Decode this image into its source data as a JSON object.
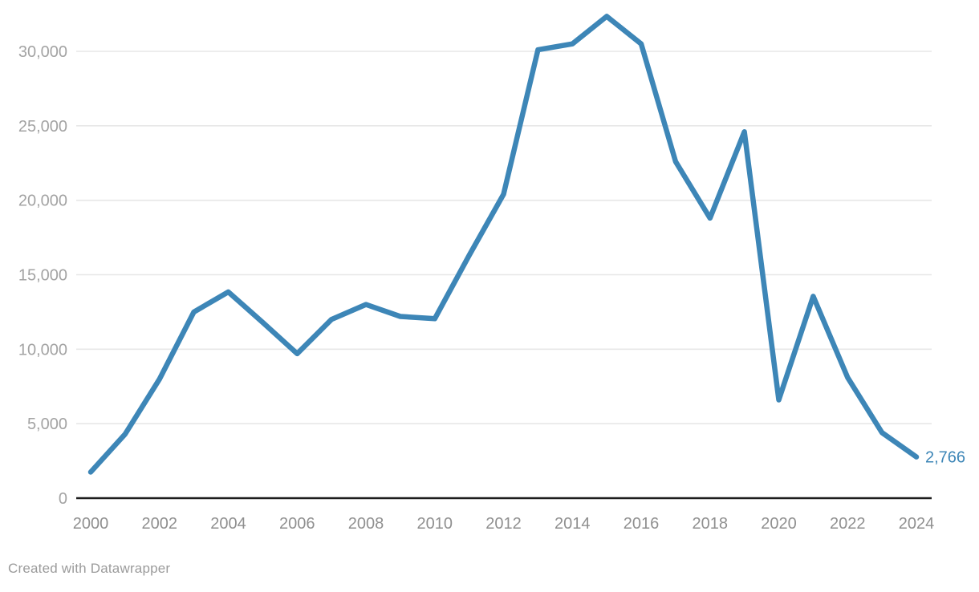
{
  "footer": {
    "attribution": "Created with Datawrapper"
  },
  "colors": {
    "line": "#3d86b7",
    "grid": "#e7e7e7",
    "axis": "#1d1d1d",
    "y_tick_text": "#a3a3a3",
    "x_tick_text": "#8f8f8f",
    "footer_text": "#9b9b9b",
    "value_label": "#3d86b7"
  },
  "chart_data": {
    "type": "line",
    "x": [
      2000,
      2001,
      2002,
      2003,
      2004,
      2005,
      2006,
      2007,
      2008,
      2009,
      2010,
      2011,
      2012,
      2013,
      2014,
      2015,
      2016,
      2017,
      2018,
      2019,
      2020,
      2021,
      2022,
      2023,
      2024
    ],
    "values": [
      1750,
      4300,
      8000,
      12500,
      13850,
      11800,
      9700,
      12000,
      13000,
      12200,
      12050,
      16300,
      20400,
      30100,
      30500,
      32350,
      30500,
      22600,
      18800,
      24600,
      6600,
      13550,
      8100,
      4400,
      2766
    ],
    "title": "",
    "xlabel": "",
    "ylabel": "",
    "xlim": [
      2000,
      2024
    ],
    "ylim": [
      0,
      32500
    ],
    "grid": "horizontal",
    "legend_position": "none",
    "end_label": "2,766",
    "y_ticks": [
      {
        "value": 0,
        "label": "0"
      },
      {
        "value": 5000,
        "label": "5,000"
      },
      {
        "value": 10000,
        "label": "10,000"
      },
      {
        "value": 15000,
        "label": "15,000"
      },
      {
        "value": 20000,
        "label": "20,000"
      },
      {
        "value": 25000,
        "label": "25,000"
      },
      {
        "value": 30000,
        "label": "30,000"
      }
    ],
    "x_ticks": [
      {
        "value": 2000,
        "label": "2000"
      },
      {
        "value": 2002,
        "label": "2002"
      },
      {
        "value": 2004,
        "label": "2004"
      },
      {
        "value": 2006,
        "label": "2006"
      },
      {
        "value": 2008,
        "label": "2008"
      },
      {
        "value": 2010,
        "label": "2010"
      },
      {
        "value": 2012,
        "label": "2012"
      },
      {
        "value": 2014,
        "label": "2014"
      },
      {
        "value": 2016,
        "label": "2016"
      },
      {
        "value": 2018,
        "label": "2018"
      },
      {
        "value": 2020,
        "label": "2020"
      },
      {
        "value": 2022,
        "label": "2022"
      },
      {
        "value": 2024,
        "label": "2024"
      }
    ]
  }
}
